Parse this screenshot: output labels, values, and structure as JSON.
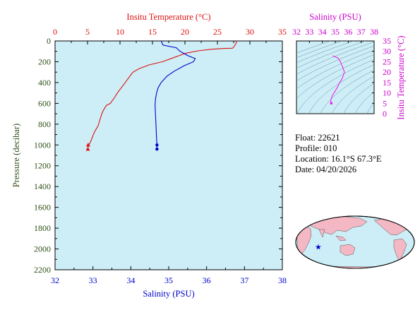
{
  "colors": {
    "temperature": "#dd1111",
    "salinity": "#0000cc",
    "pressure_axis": "#2d5016",
    "panel_bg": "#cdeef7",
    "ts_curve": "#ee22ee",
    "ts_axis": "#cc00cc",
    "map_land": "#f4b8c4",
    "map_ocean": "#cdeef7"
  },
  "info": {
    "float_label": "Float:",
    "float": "22621",
    "profile_label": "Profile:",
    "profile": "010",
    "location_label": "Location:",
    "location": "16.1°S  67.3°E",
    "date_label": "Date:",
    "date": "04/20/2026"
  },
  "map": {
    "marker_icon": "star-icon",
    "marker_lat": -16.1,
    "marker_lon": 67.3
  },
  "chart_data": [
    {
      "type": "line",
      "name": "profile",
      "y_axis": {
        "label": "Pressure (decibar)",
        "range": [
          0,
          2200
        ],
        "ticks": [
          0,
          200,
          400,
          600,
          800,
          1000,
          1200,
          1400,
          1600,
          1800,
          2000,
          2200
        ],
        "inverted": true
      },
      "x_axis_top": {
        "label": "Insitu Temperature (°C)",
        "range": [
          0,
          35
        ],
        "ticks": [
          0,
          5,
          10,
          15,
          20,
          25,
          30,
          35
        ]
      },
      "x_axis_bottom": {
        "label": "Salinity (PSU)",
        "range": [
          32,
          38
        ],
        "ticks": [
          32,
          33,
          34,
          35,
          36,
          37,
          38
        ]
      },
      "grid": false,
      "series": [
        {
          "axis": "top",
          "color": "temperature",
          "marker": "triangle",
          "points": [
            [
              27.9,
              0
            ],
            [
              27.9,
              20
            ],
            [
              27.5,
              60
            ],
            [
              27.3,
              70
            ],
            [
              26,
              72
            ],
            [
              24,
              80
            ],
            [
              22,
              95
            ],
            [
              20,
              120
            ],
            [
              18.5,
              155
            ],
            [
              16.5,
              200
            ],
            [
              14.5,
              230
            ],
            [
              13,
              265
            ],
            [
              12,
              300
            ],
            [
              11.5,
              340
            ],
            [
              10.8,
              400
            ],
            [
              10.2,
              450
            ],
            [
              9.6,
              500
            ],
            [
              9.1,
              550
            ],
            [
              8.5,
              600
            ],
            [
              7.9,
              620
            ],
            [
              7.5,
              660
            ],
            [
              7.2,
              700
            ],
            [
              6.9,
              760
            ],
            [
              6.6,
              820
            ],
            [
              6.2,
              860
            ],
            [
              5.9,
              900
            ],
            [
              5.6,
              950
            ],
            [
              5.3,
              990
            ],
            [
              5.1,
              1000
            ],
            [
              5.05,
              1040
            ]
          ],
          "markers": [
            [
              5.1,
              1000
            ],
            [
              5.05,
              1040
            ]
          ]
        },
        {
          "axis": "bottom",
          "color": "salinity",
          "marker": "circle",
          "points": [
            [
              34.8,
              0
            ],
            [
              34.85,
              40
            ],
            [
              35.2,
              65
            ],
            [
              35.3,
              100
            ],
            [
              35.5,
              140
            ],
            [
              35.7,
              170
            ],
            [
              35.65,
              200
            ],
            [
              35.4,
              240
            ],
            [
              35.15,
              290
            ],
            [
              34.95,
              340
            ],
            [
              34.8,
              400
            ],
            [
              34.72,
              450
            ],
            [
              34.68,
              500
            ],
            [
              34.65,
              560
            ],
            [
              34.64,
              620
            ],
            [
              34.65,
              700
            ],
            [
              34.66,
              780
            ],
            [
              34.67,
              860
            ],
            [
              34.68,
              940
            ],
            [
              34.69,
              1000
            ],
            [
              34.69,
              1040
            ]
          ],
          "markers": [
            [
              34.69,
              1000
            ],
            [
              34.69,
              1040
            ]
          ]
        }
      ]
    },
    {
      "type": "line",
      "name": "ts_diagram",
      "title": "Salinity (PSU)",
      "x_axis": {
        "label": "Salinity (PSU)",
        "range": [
          32,
          38
        ],
        "ticks": [
          32,
          33,
          34,
          35,
          36,
          37,
          38
        ]
      },
      "y_axis": {
        "label": "Insitu Temperature (°C)",
        "range": [
          0,
          35
        ],
        "ticks": [
          0,
          5,
          10,
          15,
          20,
          25,
          30,
          35
        ]
      },
      "series": [
        {
          "color": "ts_curve",
          "points": [
            [
              34.8,
              27.9
            ],
            [
              35.2,
              26.8
            ],
            [
              35.4,
              25
            ],
            [
              35.6,
              22
            ],
            [
              35.7,
              20
            ],
            [
              35.6,
              18
            ],
            [
              35.5,
              16.5
            ],
            [
              35.3,
              14.5
            ],
            [
              35.1,
              12
            ],
            [
              34.95,
              10.5
            ],
            [
              34.8,
              9
            ],
            [
              34.7,
              7.5
            ],
            [
              34.66,
              6.5
            ],
            [
              34.65,
              5.5
            ],
            [
              34.69,
              5.1
            ],
            [
              34.69,
              5.05
            ]
          ]
        }
      ]
    }
  ]
}
